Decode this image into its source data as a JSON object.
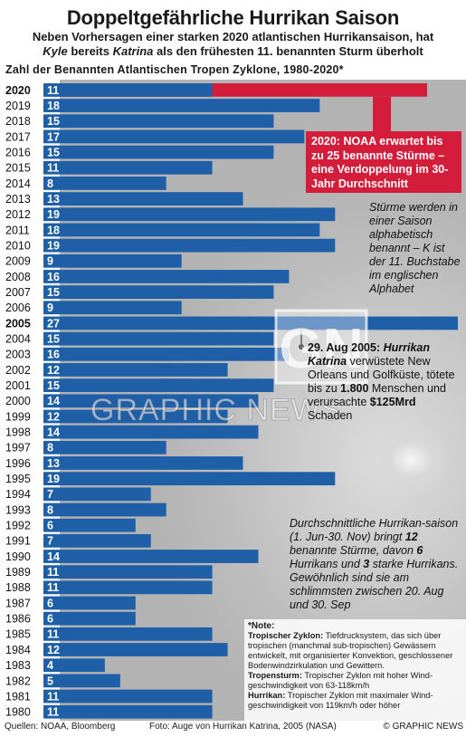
{
  "header": {
    "title": "Doppeltgefährliche Hurrikan Saison",
    "subtitle_line1": "Neben Vorhersagen einer starken 2020 atlantischen Hurrikansaison, hat",
    "subtitle_line2_kyle": "Kyle",
    "subtitle_line2_mid": " bereits ",
    "subtitle_line2_katrina": "Katrina",
    "subtitle_line2_end": " als den frühesten 11. benannten Sturm überholt"
  },
  "chart_data": {
    "type": "bar",
    "orientation": "horizontal",
    "title": "Zahl der Benannten Atlantischen Tropen Zyklone, 1980-2020*",
    "categories": [
      "2020",
      "2019",
      "2018",
      "2017",
      "2016",
      "2015",
      "2014",
      "2013",
      "2012",
      "2011",
      "2010",
      "2009",
      "2008",
      "2007",
      "2006",
      "2005",
      "2004",
      "2003",
      "2002",
      "2001",
      "2000",
      "1999",
      "1998",
      "1997",
      "1996",
      "1995",
      "1994",
      "1993",
      "1992",
      "1991",
      "1990",
      "1989",
      "1988",
      "1987",
      "1986",
      "1985",
      "1984",
      "1983",
      "1982",
      "1981",
      "1980"
    ],
    "values": [
      11,
      18,
      15,
      17,
      15,
      11,
      8,
      13,
      19,
      18,
      19,
      9,
      16,
      15,
      9,
      27,
      15,
      16,
      12,
      15,
      14,
      12,
      14,
      8,
      13,
      19,
      7,
      8,
      6,
      7,
      14,
      11,
      11,
      6,
      6,
      11,
      12,
      4,
      5,
      11,
      11
    ],
    "forecast_2020": 25,
    "highlight_years": [
      "2020",
      "2005"
    ],
    "xlim": [
      0,
      27
    ],
    "colors": {
      "bar": "#1f5fa8",
      "forecast": "#d41c3b"
    }
  },
  "annotations": {
    "forecast_callout": "2020: NOAA erwartet bis zu 25 benannte Stürme – eine Verdoppelung im 30-Jahr Durchschnitt",
    "k_note": "Stürme werden in einer Saison alphabetisch benannt – K ist der 11. Buchstabe im englischen Alphabet",
    "katrina_date": "29. Aug 2005: ",
    "katrina_name": "Hurrikan Katrina",
    "katrina_t1": " verwüstete New Orleans und Golfküste, tötete bis zu ",
    "katrina_deaths": "1.800",
    "katrina_t2": " Menschen und verursachte ",
    "katrina_damage": "$125Mrd",
    "katrina_t3": " Schaden",
    "avg_t1": "Durchschnittliche Hurrikan-saison (1. Jun-30. Nov) bringt ",
    "avg_named": "12",
    "avg_t2": " benannte Stürme, davon ",
    "avg_hurr": "6",
    "avg_t3": " Hurrikans und ",
    "avg_major": "3",
    "avg_t4": " starke Hurrikans. Gewöhnlich sind sie am schlimmsten zwischen 20. Aug und 30. Sep"
  },
  "note": {
    "head": "*Note:",
    "t1_label": "Tropischer Zyklon:",
    "t1_text": " Tiefdrucksystem, das sich über tropischen (manchmal sub-tropischen) Gewässern entwickelt, mit organisierter Konvektion, geschlossener Bodenwindzirkulation und Gewittern.",
    "t2_label": "Tropensturm:",
    "t2_text": " Tropischer Zyklon mit hoher Wind-geschwindigkeit von 63-118km/h",
    "t3_label": "Hurrikan:",
    "t3_text": " Tropischer Zyklon mit maximaler Wind-geschwindigkeit von 119km/h oder höher"
  },
  "footer": {
    "sources": "Quellen: NOAA, Bloomberg",
    "photo": "Foto: Auge von Hurrikan Katrina, 2005 (NASA)",
    "credit": "© GRAPHIC NEWS"
  },
  "watermark": {
    "logo": "GN",
    "text": "GRAPHIC NEWS"
  }
}
